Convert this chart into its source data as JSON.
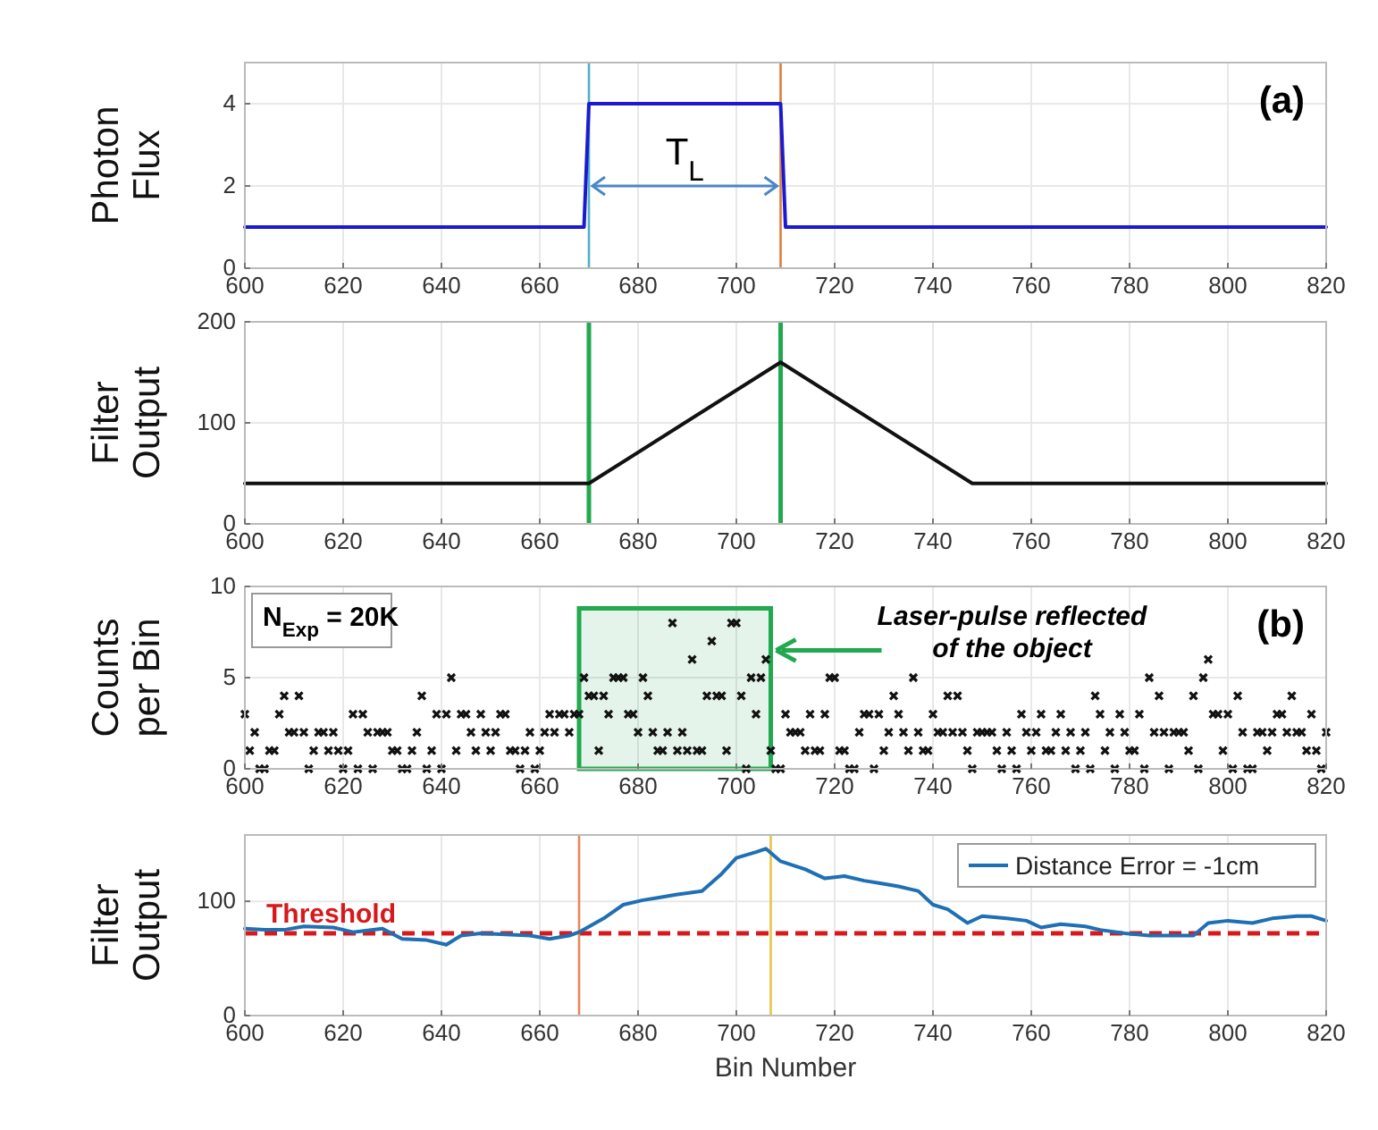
{
  "chart_data": [
    {
      "type": "line",
      "ylabel": "Photon Flux",
      "xlim": [
        600,
        820
      ],
      "xticks": [
        600,
        620,
        640,
        660,
        680,
        700,
        720,
        740,
        760,
        780,
        800,
        820
      ],
      "ylim": [
        0,
        5
      ],
      "yticks": [
        0,
        2,
        4
      ],
      "grid": true,
      "series": [
        {
          "color": "#1a1ad0",
          "x": [
            600,
            669,
            670,
            709,
            710,
            820
          ],
          "values": [
            1,
            1,
            4,
            4,
            1,
            1
          ]
        }
      ],
      "ref_lines": [
        {
          "axis": "x",
          "value": 670,
          "color": "#4fb0c6"
        },
        {
          "axis": "x",
          "value": 709,
          "color": "#e07b39"
        }
      ],
      "annotations": [
        "T$_{L}$",
        "(a)"
      ]
    },
    {
      "type": "line",
      "ylabel": "Filter Output",
      "xlim": [
        600,
        820
      ],
      "xticks": [
        600,
        620,
        640,
        660,
        680,
        700,
        720,
        740,
        760,
        780,
        800,
        820
      ],
      "ylim": [
        0,
        200
      ],
      "yticks": [
        0,
        100,
        200
      ],
      "grid": true,
      "series": [
        {
          "color": "#111111",
          "x": [
            600,
            670,
            709,
            748,
            820
          ],
          "values": [
            40,
            40,
            160,
            40,
            40
          ]
        }
      ],
      "ref_lines": [
        {
          "axis": "x",
          "value": 670,
          "color": "#22a84f"
        },
        {
          "axis": "x",
          "value": 709,
          "color": "#22a84f"
        }
      ]
    },
    {
      "type": "scatter",
      "ylabel": "Counts per Bin",
      "xlim": [
        600,
        820
      ],
      "xticks": [
        600,
        620,
        640,
        660,
        680,
        700,
        720,
        740,
        760,
        780,
        800,
        820
      ],
      "ylim": [
        0,
        10
      ],
      "yticks": [
        0,
        5,
        10
      ],
      "grid": true,
      "marker": "cross",
      "series": [
        {
          "color": "#111111",
          "x": [
            600,
            601,
            602,
            603,
            604,
            605,
            606,
            607,
            608,
            609,
            610,
            611,
            612,
            613,
            614,
            615,
            616,
            617,
            618,
            619,
            620,
            621,
            622,
            623,
            624,
            625,
            626,
            627,
            628,
            629,
            630,
            631,
            632,
            633,
            634,
            635,
            636,
            637,
            638,
            639,
            640,
            641,
            642,
            643,
            644,
            645,
            646,
            647,
            648,
            649,
            650,
            651,
            652,
            653,
            654,
            655,
            656,
            657,
            658,
            659,
            660,
            661,
            662,
            663,
            664,
            665,
            666,
            667,
            668,
            669,
            670,
            671,
            672,
            673,
            674,
            675,
            676,
            677,
            678,
            679,
            680,
            681,
            682,
            683,
            684,
            685,
            686,
            687,
            688,
            689,
            690,
            691,
            692,
            693,
            694,
            695,
            696,
            697,
            698,
            699,
            700,
            701,
            702,
            703,
            704,
            705,
            706,
            707,
            708,
            709,
            710,
            711,
            712,
            713,
            714,
            715,
            716,
            717,
            718,
            719,
            720,
            721,
            722,
            723,
            724,
            725,
            726,
            727,
            728,
            729,
            730,
            731,
            732,
            733,
            734,
            735,
            736,
            737,
            738,
            739,
            740,
            741,
            742,
            743,
            744,
            745,
            746,
            747,
            748,
            749,
            750,
            751,
            752,
            753,
            754,
            755,
            756,
            757,
            758,
            759,
            760,
            761,
            762,
            763,
            764,
            765,
            766,
            767,
            768,
            769,
            770,
            771,
            772,
            773,
            774,
            775,
            776,
            777,
            778,
            779,
            780,
            781,
            782,
            783,
            784,
            785,
            786,
            787,
            788,
            789,
            790,
            791,
            792,
            793,
            794,
            795,
            796,
            797,
            798,
            799,
            800,
            801,
            802,
            803,
            804,
            805,
            806,
            807,
            808,
            809,
            810,
            811,
            812,
            813,
            814,
            815,
            816,
            817,
            818,
            819,
            820
          ],
          "values": [
            3,
            1,
            2,
            0,
            0,
            1,
            1,
            3,
            4,
            2,
            2,
            4,
            2,
            0,
            1,
            2,
            2,
            1,
            2,
            1,
            0,
            1,
            3,
            0,
            3,
            2,
            0,
            2,
            2,
            2,
            1,
            1,
            0,
            0,
            1,
            2,
            4,
            0,
            1,
            3,
            0,
            3,
            5,
            1,
            3,
            3,
            2,
            1,
            3,
            2,
            1,
            2,
            3,
            3,
            1,
            1,
            0,
            1,
            2,
            0,
            1,
            2,
            3,
            2,
            3,
            3,
            2,
            3,
            3,
            5,
            4,
            4,
            1,
            4,
            3,
            5,
            5,
            5,
            3,
            3,
            2,
            5,
            4,
            2,
            1,
            1,
            2,
            8,
            1,
            2,
            1,
            6,
            1,
            1,
            4,
            7,
            4,
            4,
            1,
            8,
            8,
            4,
            0,
            5,
            3,
            5,
            6,
            1,
            0,
            0,
            3,
            2,
            2,
            2,
            1,
            3,
            1,
            1,
            3,
            5,
            5,
            1,
            1,
            0,
            0,
            2,
            3,
            3,
            0,
            3,
            1,
            2,
            4,
            3,
            2,
            1,
            5,
            2,
            1,
            1,
            3,
            2,
            2,
            4,
            2,
            4,
            2,
            1,
            0,
            2,
            2,
            2,
            2,
            1,
            0,
            2,
            1,
            0,
            3,
            2,
            1,
            2,
            3,
            1,
            1,
            2,
            3,
            1,
            2,
            0,
            1,
            2,
            0,
            4,
            3,
            1,
            2,
            0,
            3,
            2,
            1,
            1,
            3,
            0,
            5,
            2,
            4,
            2,
            0,
            2,
            2,
            2,
            1,
            4,
            0,
            5,
            6,
            3,
            3,
            1,
            3,
            0,
            4,
            2,
            0,
            0,
            2,
            2,
            1,
            2,
            3,
            3,
            2,
            4,
            2,
            2,
            1,
            3,
            1,
            0,
            2
          ]
        }
      ],
      "bands": [
        {
          "axis": "x",
          "from": 668,
          "to": 707,
          "color": "#22a84f"
        }
      ],
      "annotations": [
        {
          "text": "Laser-pulse reflected of the object",
          "x": 707,
          "y": 6.5
        },
        "N$_{Exp}$ = 20K",
        "(b)"
      ]
    },
    {
      "type": "line",
      "ylabel": "Filter Output",
      "xlabel": "Bin Number",
      "xlim": [
        600,
        820
      ],
      "xticks": [
        600,
        620,
        640,
        660,
        680,
        700,
        720,
        740,
        760,
        780,
        800,
        820
      ],
      "ylim": [
        0,
        158
      ],
      "yticks": [
        0,
        100
      ],
      "grid": true,
      "legend": "top right",
      "series": [
        {
          "name": "Distance Error = -1cm",
          "color": "#1f6fb4",
          "x": [
            600,
            604,
            608,
            612,
            618,
            622,
            628,
            632,
            637,
            641,
            644,
            648,
            653,
            658,
            662,
            666,
            668,
            673,
            677,
            681,
            684,
            688,
            693,
            697,
            700,
            704,
            706,
            709,
            714,
            718,
            722,
            726,
            729,
            733,
            737,
            740,
            743,
            747,
            750,
            755,
            759,
            762,
            766,
            771,
            774,
            779,
            784,
            789,
            793,
            796,
            800,
            805,
            809,
            814,
            817,
            820
          ],
          "values": [
            76,
            75,
            75,
            78,
            77,
            73,
            76,
            67,
            66,
            62,
            70,
            72,
            71,
            70,
            67,
            70,
            73,
            85,
            97,
            101,
            103,
            106,
            109,
            124,
            138,
            143,
            146,
            135,
            128,
            120,
            122,
            118,
            116,
            113,
            109,
            97,
            93,
            81,
            87,
            85,
            83,
            77,
            80,
            78,
            75,
            72,
            70,
            70,
            70,
            81,
            83,
            81,
            85,
            87,
            87,
            83
          ]
        }
      ],
      "ref_lines": [
        {
          "axis": "y",
          "value": 72,
          "label": "Threshold",
          "color": "#d7191c",
          "line_style": "dashed"
        },
        {
          "axis": "x",
          "value": 668,
          "color": "#e8875a"
        },
        {
          "axis": "x",
          "value": 707,
          "color": "#e8c547"
        }
      ]
    }
  ]
}
